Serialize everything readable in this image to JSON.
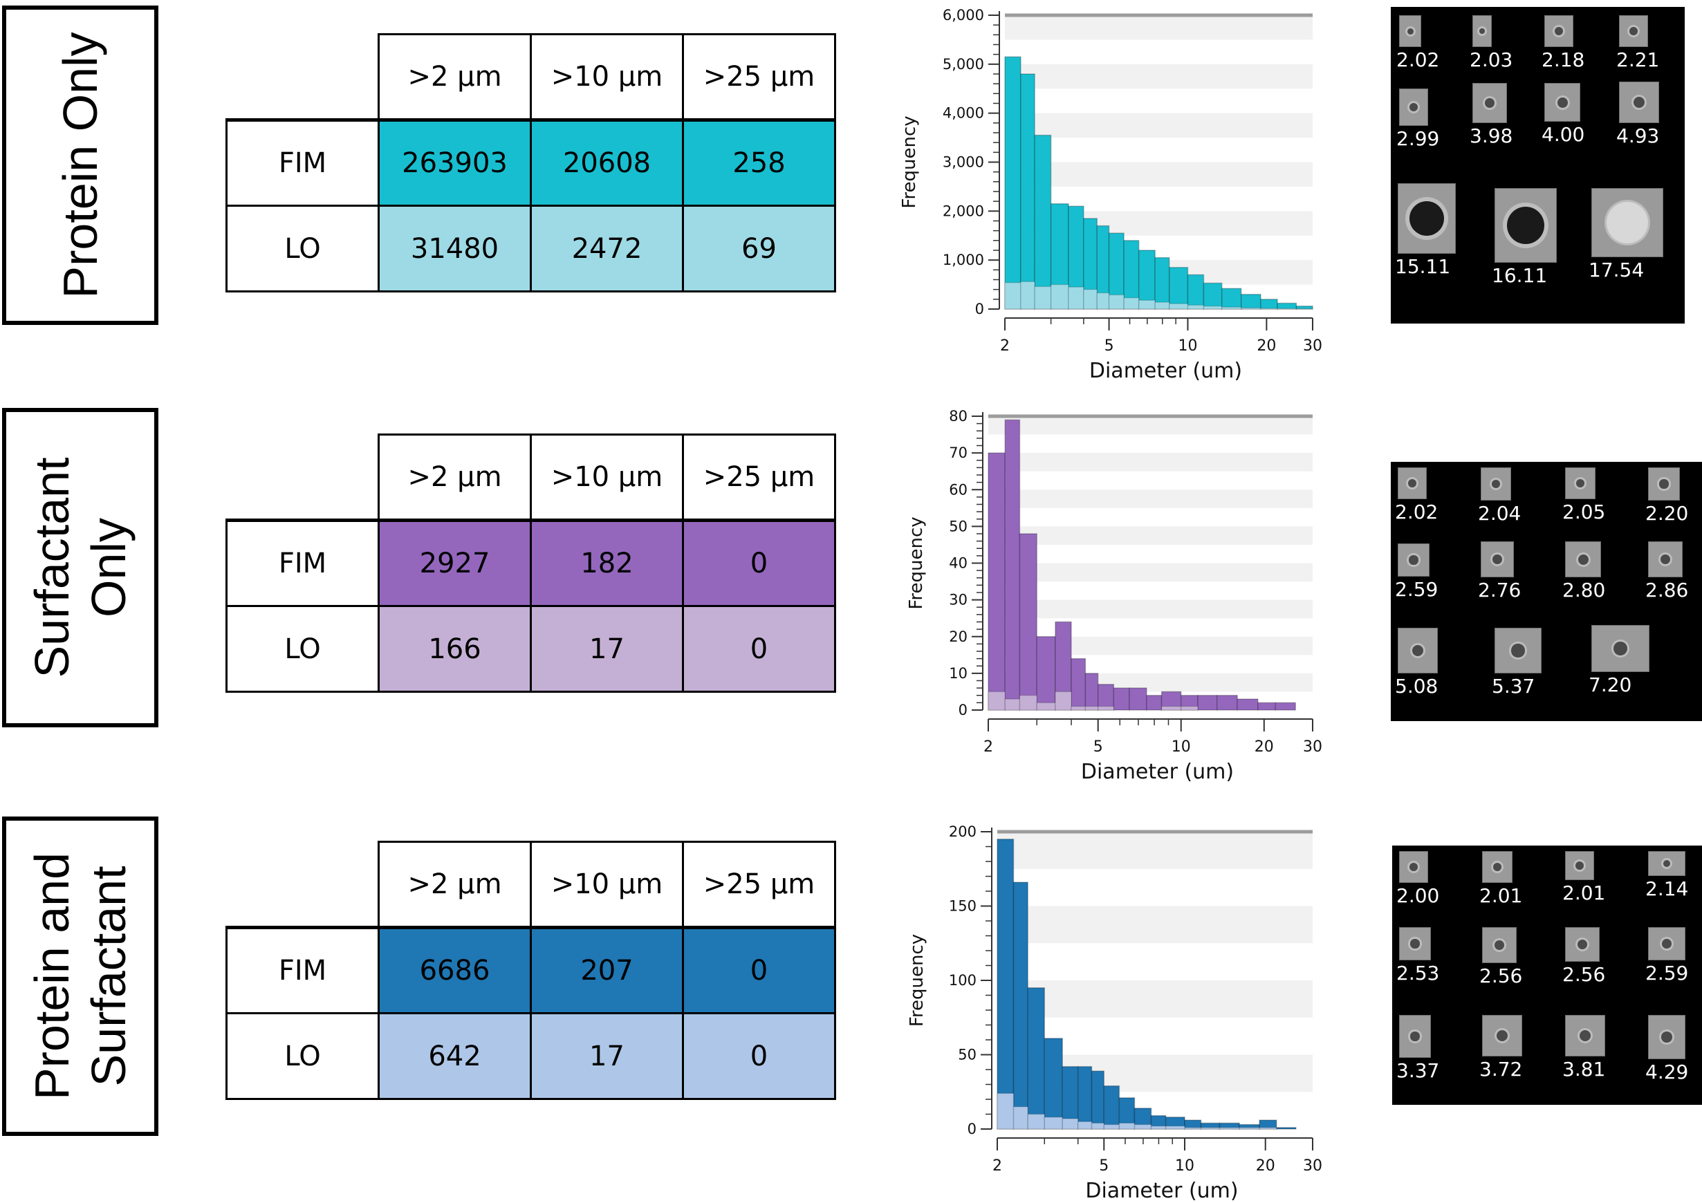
{
  "rows": [
    {
      "label_lines": [
        "Protein Only"
      ],
      "headers": [
        ">2 µm",
        ">10 µm",
        ">25 µm"
      ],
      "fim_label": "FIM",
      "lo_label": "LO",
      "fim": [
        "263903",
        "20608",
        "258"
      ],
      "lo": [
        "31480",
        "2472",
        "69"
      ],
      "colors": {
        "fim": "#17becf",
        "lo": "#9edae5"
      },
      "gallery_labels": [
        "2.02",
        "2.03",
        "2.18",
        "2.21",
        "2.99",
        "3.98",
        "4.00",
        "4.93",
        "15.11",
        "16.11",
        "17.54"
      ]
    },
    {
      "label_lines": [
        "Surfactant",
        "Only"
      ],
      "headers": [
        ">2 µm",
        ">10 µm",
        ">25 µm"
      ],
      "fim_label": "FIM",
      "lo_label": "LO",
      "fim": [
        "2927",
        "182",
        "0"
      ],
      "lo": [
        "166",
        "17",
        "0"
      ],
      "colors": {
        "fim": "#9467bd",
        "lo": "#c5b0d5"
      },
      "gallery_labels": [
        "2.02",
        "2.04",
        "2.05",
        "2.20",
        "2.59",
        "2.76",
        "2.80",
        "2.86",
        "5.08",
        "5.37",
        "7.20"
      ]
    },
    {
      "label_lines": [
        "Protein and",
        "Surfactant"
      ],
      "headers": [
        ">2 µm",
        ">10 µm",
        ">25 µm"
      ],
      "fim_label": "FIM",
      "lo_label": "LO",
      "fim": [
        "6686",
        "207",
        "0"
      ],
      "lo": [
        "642",
        "17",
        "0"
      ],
      "colors": {
        "fim": "#1f77b4",
        "lo": "#aec7e8"
      },
      "gallery_labels": [
        "2.00",
        "2.01",
        "2.01",
        "2.14",
        "2.53",
        "2.56",
        "2.56",
        "2.59",
        "3.37",
        "3.72",
        "3.81",
        "4.29"
      ]
    }
  ],
  "chart_data": [
    {
      "type": "bar",
      "xlabel": "Diameter (um)",
      "ylabel": "Frequency",
      "x_scale": "log",
      "xlim": [
        2,
        30
      ],
      "ylim": [
        0,
        6000
      ],
      "xticks": [
        2,
        5,
        10,
        20,
        30
      ],
      "xtick_labels": [
        "2",
        "5",
        "10",
        "20",
        "30"
      ],
      "yticks": [
        0,
        1000,
        2000,
        3000,
        4000,
        5000,
        6000
      ],
      "ytick_labels": [
        "0",
        "1,000",
        "2,000",
        "3,000",
        "4,000",
        "5,000",
        "6,000"
      ],
      "bin_edges": [
        2,
        2.3,
        2.6,
        3,
        3.5,
        4,
        4.5,
        5,
        5.7,
        6.5,
        7.5,
        8.5,
        10,
        11.5,
        13.5,
        16,
        19,
        22,
        26,
        30
      ],
      "series": [
        {
          "values": [
            5150,
            4800,
            3550,
            2150,
            2100,
            1850,
            1700,
            1550,
            1400,
            1200,
            1050,
            850,
            700,
            530,
            420,
            300,
            200,
            120,
            60
          ],
          "color": "#17becf"
        },
        {
          "values": [
            540,
            560,
            460,
            500,
            450,
            400,
            330,
            290,
            230,
            180,
            140,
            110,
            80,
            60,
            40,
            25,
            15,
            10,
            5
          ],
          "color": "#9edae5"
        }
      ],
      "grid": "horizontal-bands"
    },
    {
      "type": "bar",
      "xlabel": "Diameter (um)",
      "ylabel": "Frequency",
      "x_scale": "log",
      "xlim": [
        2,
        30
      ],
      "ylim": [
        0,
        80
      ],
      "xticks": [
        2,
        5,
        10,
        20,
        30
      ],
      "xtick_labels": [
        "2",
        "5",
        "10",
        "20",
        "30"
      ],
      "yticks": [
        0,
        10,
        20,
        30,
        40,
        50,
        60,
        70,
        80
      ],
      "ytick_labels": [
        "0",
        "10",
        "20",
        "30",
        "40",
        "50",
        "60",
        "70",
        "80"
      ],
      "bin_edges": [
        2,
        2.3,
        2.6,
        3,
        3.5,
        4,
        4.5,
        5,
        5.7,
        6.5,
        7.5,
        8.5,
        10,
        11.5,
        13.5,
        16,
        19,
        22,
        26,
        30
      ],
      "series": [
        {
          "values": [
            70,
            79,
            48,
            20,
            24,
            14,
            10,
            7,
            6,
            6,
            4,
            5,
            4,
            4,
            4,
            3,
            2,
            2,
            0
          ],
          "color": "#9467bd"
        },
        {
          "values": [
            5,
            3,
            4,
            2,
            5,
            1,
            1,
            1,
            0,
            0,
            0,
            1,
            1,
            0,
            0,
            0,
            0,
            0,
            0
          ],
          "color": "#c5b0d5"
        }
      ],
      "grid": "horizontal-bands"
    },
    {
      "type": "bar",
      "xlabel": "Diameter (um)",
      "ylabel": "Frequency",
      "x_scale": "log",
      "xlim": [
        2,
        30
      ],
      "ylim": [
        0,
        200
      ],
      "xticks": [
        2,
        5,
        10,
        20,
        30
      ],
      "xtick_labels": [
        "2",
        "5",
        "10",
        "20",
        "30"
      ],
      "yticks": [
        0,
        50,
        100,
        150,
        200
      ],
      "ytick_labels": [
        "0",
        "50",
        "100",
        "150",
        "200"
      ],
      "bin_edges": [
        2,
        2.3,
        2.6,
        3,
        3.5,
        4,
        4.5,
        5,
        5.7,
        6.5,
        7.5,
        8.5,
        10,
        11.5,
        13.5,
        16,
        19,
        22,
        26,
        30
      ],
      "series": [
        {
          "values": [
            195,
            166,
            95,
            61,
            42,
            42,
            39,
            29,
            21,
            14,
            9,
            8,
            6,
            4,
            4,
            3,
            6,
            1,
            0
          ],
          "color": "#1f77b4"
        },
        {
          "values": [
            24,
            15,
            10,
            8,
            7,
            5,
            4,
            3,
            4,
            3,
            2,
            2,
            1,
            1,
            1,
            1,
            1,
            0,
            0
          ],
          "color": "#aec7e8"
        }
      ],
      "grid": "horizontal-bands"
    }
  ]
}
